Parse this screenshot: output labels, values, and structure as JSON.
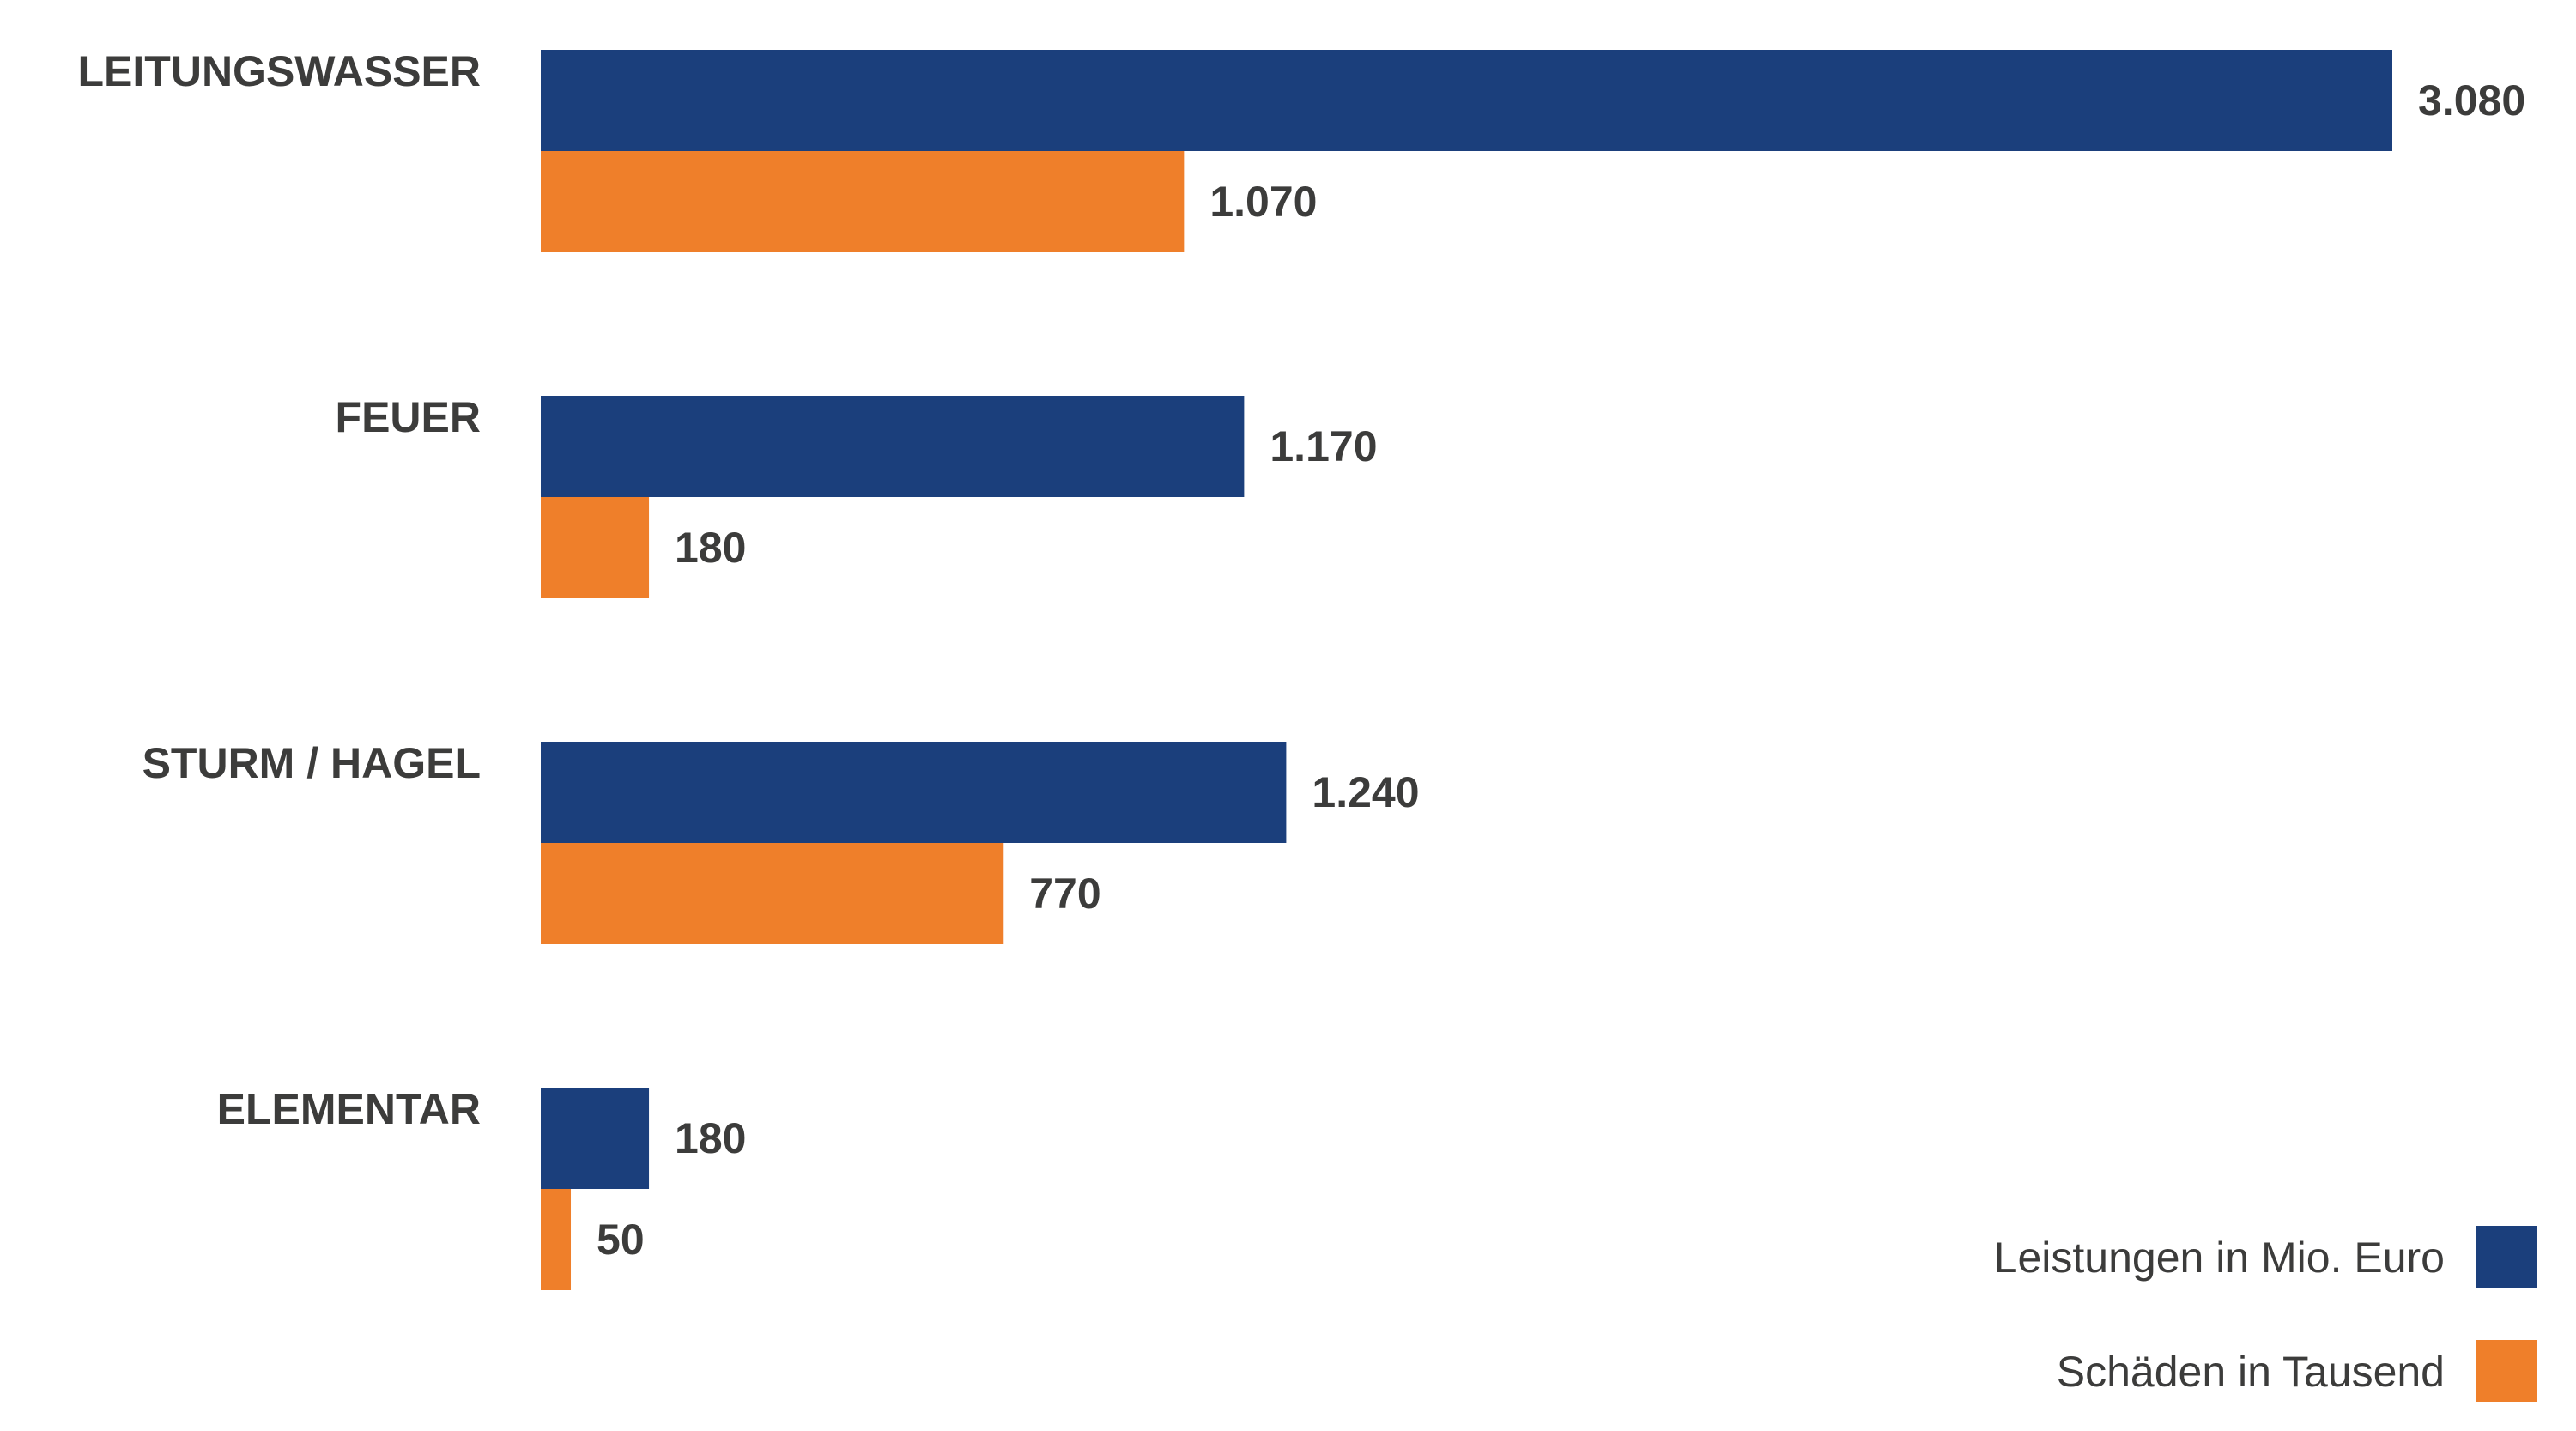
{
  "chart_data": {
    "type": "bar",
    "orientation": "horizontal",
    "categories": [
      "LEITUNGSWASSER",
      "FEUER",
      "STURM / HAGEL",
      "ELEMENTAR"
    ],
    "series": [
      {
        "name": "Leistungen in Mio. Euro",
        "color": "#1b3f7c",
        "values": [
          3080,
          1170,
          1240,
          180
        ],
        "labels": [
          "3.080",
          "1.170",
          "1.240",
          "180"
        ]
      },
      {
        "name": "Schäden in Tausend",
        "color": "#ef7f2a",
        "values": [
          1070,
          180,
          770,
          50
        ],
        "labels": [
          "1.070",
          "180",
          "770",
          "50"
        ]
      }
    ],
    "title": "",
    "xlabel": "",
    "ylabel": "",
    "xlim": [
      0,
      3080
    ],
    "grid": false,
    "legend_position": "bottom-right"
  },
  "colors": {
    "text": "#3c3c3b",
    "background": "#ffffff"
  }
}
